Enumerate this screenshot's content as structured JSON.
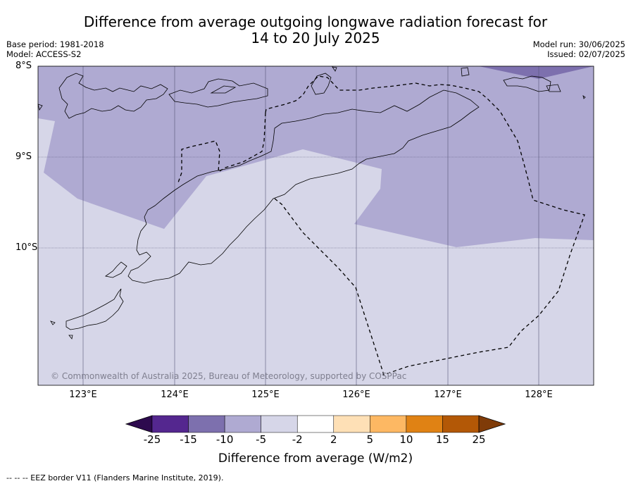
{
  "title_line1": "Difference from average outgoing longwave radiation forecast for",
  "title_line2": "14 to 20 July 2025",
  "meta": {
    "base_period": "Base period: 1981-2018",
    "model": "Model: ACCESS-S2",
    "model_run": "Model run: 30/06/2025",
    "issued": "Issued: 02/07/2025"
  },
  "map": {
    "lat_labels": [
      "8°S",
      "9°S",
      "10°S"
    ],
    "lon_labels": [
      "123°E",
      "124°E",
      "125°E",
      "126°E",
      "127°E",
      "128°E"
    ],
    "copyright": "© Commonwealth of Australia 2025, Bureau of Meteorology, supported by COSPPac",
    "colors": {
      "bin_minus5_minus2": "#d6d6e8",
      "bin_minus10_minus5": "#afaad2",
      "bin_minus15_minus10": "#7d70ae",
      "coast": "#000000",
      "grid": "#555577"
    }
  },
  "colorbar": {
    "ticks": [
      "-25",
      "-15",
      "-10",
      "-5",
      "-2",
      "2",
      "5",
      "10",
      "15",
      "25"
    ],
    "colors": [
      "#2d0a4e",
      "#54278f",
      "#7d70ae",
      "#afaad2",
      "#d6d6e8",
      "#ffffff",
      "#fee0b6",
      "#fdb863",
      "#e08214",
      "#b35806",
      "#7f3b08"
    ],
    "label": "Difference from average (W/m2)"
  },
  "footnote": "--  --  -- EEZ border V11 (Flanders Marine Institute, 2019)."
}
